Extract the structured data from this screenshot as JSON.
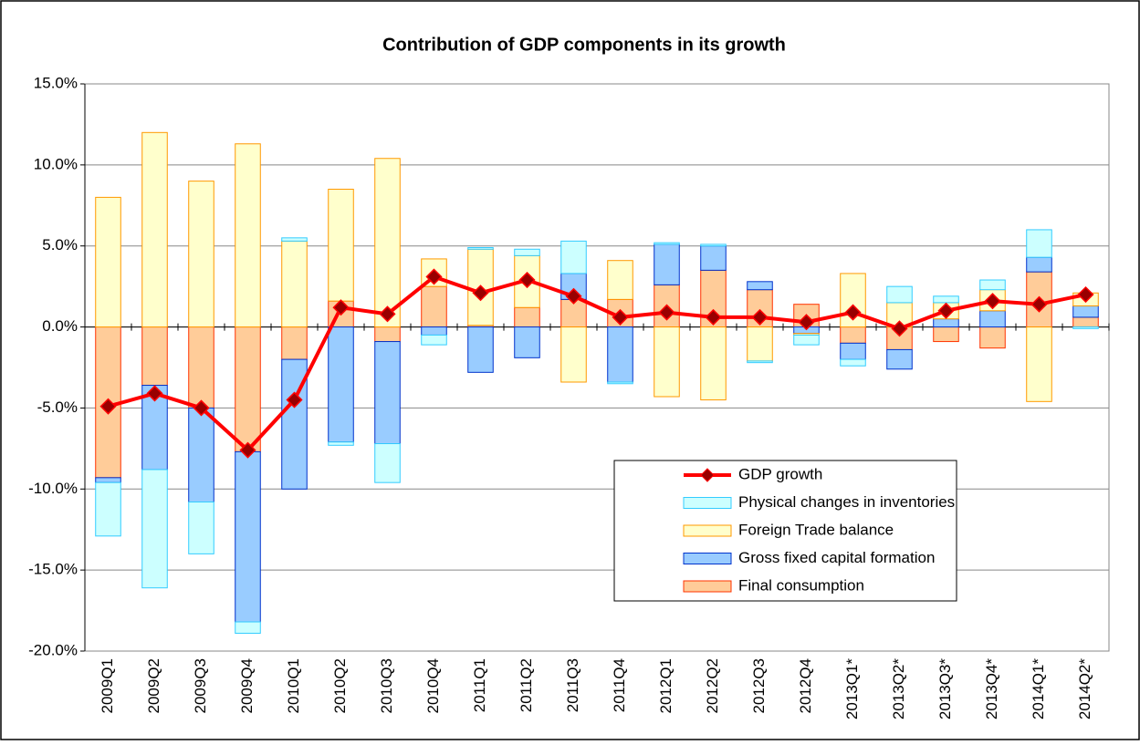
{
  "chart_data": {
    "type": "bar",
    "title": "Contribution of GDP components in its growth",
    "categories": [
      "2009Q1",
      "2009Q2",
      "2009Q3",
      "2009Q4",
      "2010Q1",
      "2010Q2",
      "2010Q3",
      "2010Q4",
      "2011Q1",
      "2011Q2",
      "2011Q3",
      "2011Q4",
      "2012Q1",
      "2012Q2",
      "2012Q3",
      "2012Q4",
      "2013Q1*",
      "2013Q2*",
      "2013Q3*",
      "2013Q4*",
      "2014Q1*",
      "2014Q2*"
    ],
    "series": [
      {
        "name": "Final consumption",
        "type": "bar",
        "color": "#ffcc99",
        "stroke": "#ff3300",
        "values": [
          -9.3,
          -3.6,
          -5.0,
          -7.7,
          -2.0,
          1.6,
          -0.9,
          2.5,
          0.1,
          1.2,
          1.7,
          1.7,
          2.6,
          3.5,
          2.3,
          1.4,
          -1.0,
          -1.4,
          -0.9,
          -1.3,
          3.4,
          0.6
        ]
      },
      {
        "name": "Gross fixed capital formation",
        "type": "bar",
        "color": "#99ccff",
        "stroke": "#0033cc",
        "values": [
          -0.3,
          -5.2,
          -5.8,
          -10.5,
          -8.0,
          -7.1,
          -6.3,
          -0.5,
          -2.8,
          -1.9,
          1.6,
          -3.4,
          2.5,
          1.5,
          0.5,
          -0.4,
          -1.0,
          -1.2,
          0.5,
          1.0,
          0.9,
          0.7
        ]
      },
      {
        "name": "Foreign Trade balance",
        "type": "bar",
        "color": "#ffffcc",
        "stroke": "#ff9900",
        "values": [
          8.0,
          12.0,
          9.0,
          11.3,
          5.3,
          6.9,
          10.4,
          1.7,
          4.7,
          3.2,
          -3.4,
          2.4,
          -4.3,
          -4.5,
          -2.1,
          -0.1,
          3.3,
          1.5,
          1.0,
          1.3,
          -4.6,
          0.8
        ]
      },
      {
        "name": "Physical changes in inventories",
        "type": "bar",
        "color": "#ccffff",
        "stroke": "#33ccff",
        "values": [
          -3.3,
          -7.3,
          -3.2,
          -0.7,
          0.2,
          -0.2,
          -2.4,
          -0.6,
          0.1,
          0.4,
          2.0,
          -0.1,
          0.1,
          0.1,
          -0.1,
          -0.6,
          -0.4,
          1.0,
          0.4,
          0.6,
          1.7,
          -0.1
        ]
      },
      {
        "name": "GDP growth",
        "type": "line",
        "color": "#ff0000",
        "marker": "#990000",
        "values": [
          -4.9,
          -4.1,
          -5.0,
          -7.6,
          -4.5,
          1.2,
          0.8,
          3.1,
          2.1,
          2.9,
          1.9,
          0.6,
          0.9,
          0.6,
          0.6,
          0.3,
          0.9,
          -0.1,
          1.0,
          1.6,
          1.4,
          2.0
        ]
      }
    ],
    "ylim": [
      -20,
      15
    ],
    "yticks": [
      {
        "value": -20,
        "label": "-20.0%"
      },
      {
        "value": -15,
        "label": "-15.0%"
      },
      {
        "value": -10,
        "label": "-10.0%"
      },
      {
        "value": -5,
        "label": "-5.0%"
      },
      {
        "value": 0,
        "label": "0.0%"
      },
      {
        "value": 5,
        "label": "5.0%"
      },
      {
        "value": 10,
        "label": "10.0%"
      },
      {
        "value": 15,
        "label": "15.0%"
      }
    ],
    "grid": true,
    "legend": "lower right"
  }
}
